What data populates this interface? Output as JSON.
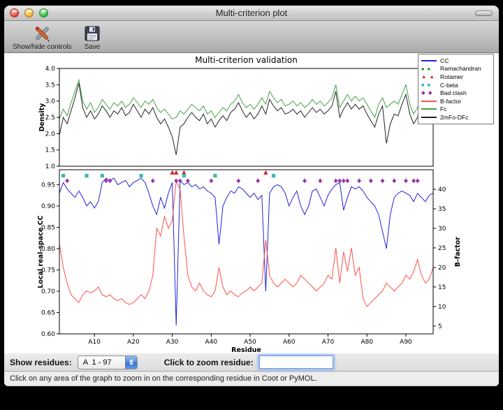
{
  "window": {
    "title": "Multi-criterion plot"
  },
  "toolbar": {
    "items": [
      {
        "label": "Show/hide controls",
        "icon": "tools-icon"
      },
      {
        "label": "Save",
        "icon": "save-icon"
      }
    ]
  },
  "controls": {
    "show_residues_label": "Show residues:",
    "chain_select_value": "A  1 - 97",
    "zoom_label": "Click to zoom residue:",
    "zoom_input_value": ""
  },
  "status_bar": {
    "text": "Click on any area of the graph to zoom in on the corresponding residue in Coot or PyMOL."
  },
  "chart_data": {
    "type": "line",
    "title": "Multi-criterion validation",
    "xlabel": "Residue",
    "x_range": [
      1,
      97
    ],
    "x_tick_positions": [
      10,
      20,
      30,
      40,
      50,
      60,
      70,
      80,
      90
    ],
    "x_ticks": [
      "A10",
      "A20",
      "A30",
      "A40",
      "A50",
      "A60",
      "A70",
      "A80",
      "A90"
    ],
    "legend": {
      "position": "upper right",
      "items": [
        {
          "label": "CC",
          "glyph": "line",
          "color": "#2222dd"
        },
        {
          "label": "Ramachandran",
          "glyph": "circle",
          "color": "#008000"
        },
        {
          "label": "Rotamer",
          "glyph": "triangle",
          "color": "#d42222"
        },
        {
          "label": "C-beta",
          "glyph": "square",
          "color": "#3cb8b2"
        },
        {
          "label": "Bad clash",
          "glyph": "diamond",
          "color": "#9933aa"
        },
        {
          "label": "B-factor",
          "glyph": "line",
          "color": "#ff5048"
        },
        {
          "label": "Fc",
          "glyph": "line",
          "color": "#44a044"
        },
        {
          "label": "2mFo-DFc",
          "glyph": "line",
          "color": "#222222"
        }
      ]
    },
    "panels": [
      {
        "ylabel": "Density",
        "ylim": [
          1.0,
          4.0
        ],
        "yticks": [
          1.0,
          1.5,
          2.0,
          2.5,
          3.0,
          3.5,
          4.0
        ],
        "ytick_labels": [
          "1.0",
          "1.5",
          "2.0",
          "2.5",
          "3.0",
          "3.5",
          "4.0"
        ],
        "series": [
          {
            "name": "Fc",
            "color": "#44a044",
            "values": [
              2.45,
              2.75,
              2.55,
              2.95,
              3.3,
              3.65,
              3.0,
              2.75,
              2.95,
              2.65,
              2.8,
              3.05,
              2.9,
              2.75,
              2.95,
              2.85,
              3.0,
              2.8,
              2.9,
              3.1,
              2.95,
              2.8,
              3.0,
              2.9,
              3.05,
              2.8,
              2.65,
              2.75,
              2.6,
              2.45,
              2.5,
              2.7,
              2.6,
              2.75,
              2.9,
              2.8,
              2.7,
              2.85,
              2.6,
              2.7,
              2.5,
              2.65,
              2.8,
              2.7,
              2.9,
              3.0,
              3.2,
              2.95,
              2.8,
              2.9,
              2.75,
              2.9,
              3.1,
              2.9,
              3.3,
              3.1,
              2.95,
              3.05,
              2.85,
              2.9,
              3.0,
              2.85,
              2.95,
              2.8,
              2.9,
              3.05,
              2.9,
              3.0,
              2.85,
              2.95,
              3.1,
              3.5,
              2.8,
              3.0,
              3.2,
              3.0,
              3.15,
              3.0,
              3.1,
              2.9,
              2.7,
              2.5,
              2.9,
              3.1,
              2.8,
              2.9,
              3.0,
              2.9,
              3.2,
              3.5,
              2.9,
              2.6,
              2.8,
              3.4,
              3.3,
              2.7,
              2.9
            ]
          },
          {
            "name": "2mFo-DFc",
            "color": "#222222",
            "values": [
              1.95,
              2.5,
              2.3,
              2.7,
              3.1,
              3.55,
              2.8,
              2.5,
              2.7,
              2.45,
              2.6,
              2.85,
              2.7,
              2.5,
              2.7,
              2.6,
              2.8,
              2.55,
              2.65,
              2.9,
              2.7,
              2.5,
              2.75,
              2.6,
              2.8,
              2.5,
              2.3,
              2.45,
              2.2,
              1.9,
              1.35,
              2.2,
              2.3,
              2.5,
              2.65,
              2.5,
              2.4,
              2.6,
              2.3,
              2.45,
              2.2,
              2.4,
              2.55,
              2.4,
              2.65,
              2.75,
              2.95,
              2.7,
              2.5,
              2.65,
              2.45,
              2.6,
              2.85,
              2.6,
              3.05,
              2.85,
              2.7,
              2.8,
              2.6,
              2.65,
              2.75,
              2.6,
              2.7,
              2.5,
              2.65,
              2.8,
              2.65,
              2.75,
              2.6,
              2.7,
              2.85,
              3.3,
              2.5,
              2.75,
              2.95,
              2.75,
              2.9,
              2.75,
              2.85,
              2.6,
              2.4,
              2.2,
              2.6,
              2.85,
              1.7,
              2.3,
              2.6,
              2.55,
              2.9,
              3.2,
              2.6,
              2.3,
              2.5,
              3.1,
              3.0,
              2.4,
              2.6
            ]
          }
        ]
      },
      {
        "ylabel": "Local real-space CC",
        "ylim": [
          0.6,
          0.985
        ],
        "yticks": [
          0.6,
          0.65,
          0.7,
          0.75,
          0.8,
          0.85,
          0.9,
          0.95
        ],
        "ytick_labels": [
          "0.60",
          "0.65",
          "0.70",
          "0.75",
          "0.80",
          "0.85",
          "0.90",
          "0.95"
        ],
        "y2label": "B-factor",
        "y2lim": [
          3,
          45
        ],
        "y2ticks": [
          5,
          10,
          15,
          20,
          25,
          30,
          35,
          40
        ],
        "y2tick_labels": [
          "5",
          "10",
          "15",
          "20",
          "25",
          "30",
          "35",
          "40"
        ],
        "series": [
          {
            "name": "CC",
            "color": "#2222dd",
            "axis": "left",
            "values": [
              0.93,
              0.955,
              0.94,
              0.93,
              0.92,
              0.935,
              0.92,
              0.9,
              0.91,
              0.895,
              0.91,
              0.955,
              0.965,
              0.96,
              0.965,
              0.95,
              0.955,
              0.96,
              0.945,
              0.955,
              0.96,
              0.965,
              0.955,
              0.93,
              0.9,
              0.88,
              0.92,
              0.895,
              0.93,
              0.955,
              0.62,
              0.96,
              0.95,
              0.955,
              0.945,
              0.95,
              0.94,
              0.945,
              0.935,
              0.93,
              0.92,
              0.81,
              0.9,
              0.92,
              0.935,
              0.93,
              0.945,
              0.94,
              0.93,
              0.92,
              0.93,
              0.915,
              0.925,
              0.7,
              0.93,
              0.945,
              0.95,
              0.945,
              0.93,
              0.9,
              0.92,
              0.935,
              0.9,
              0.88,
              0.9,
              0.935,
              0.94,
              0.92,
              0.9,
              0.925,
              0.94,
              0.95,
              0.955,
              0.89,
              0.92,
              0.945,
              0.94,
              0.945,
              0.935,
              0.92,
              0.91,
              0.9,
              0.88,
              0.84,
              0.8,
              0.88,
              0.92,
              0.93,
              0.935,
              0.93,
              0.925,
              0.91,
              0.93,
              0.92,
              0.91,
              0.925,
              0.93
            ]
          },
          {
            "name": "B-factor",
            "color": "#ff5048",
            "axis": "right",
            "values": [
              26,
              20,
              16,
              13,
              12,
              11,
              13,
              14,
              13.5,
              14,
              15,
              13,
              12.5,
              13,
              12,
              11.5,
              12,
              11,
              10.5,
              11,
              12,
              13,
              12,
              14,
              18,
              30,
              28,
              33,
              30,
              32,
              42,
              40,
              28,
              18,
              15,
              14,
              16,
              14,
              13,
              12.5,
              14,
              20,
              15,
              13,
              14,
              13,
              12.5,
              13.5,
              14,
              15,
              14,
              15,
              16,
              27,
              18,
              16,
              15,
              16,
              17,
              16,
              15,
              16,
              18,
              17,
              16,
              15,
              14,
              15,
              16,
              18,
              17,
              25,
              16,
              24,
              19,
              25,
              18,
              20,
              12,
              10,
              11,
              12,
              13,
              14,
              16,
              15,
              14,
              15,
              16,
              18,
              17,
              19,
              22,
              18,
              16,
              17,
              20
            ]
          }
        ],
        "markers": [
          {
            "name": "Ramachandran",
            "shape": "circle",
            "color": "#008000",
            "y": 0.978,
            "residues": []
          },
          {
            "name": "Rotamer",
            "shape": "triangle",
            "color": "#d42222",
            "y": 0.978,
            "residues": [
              30,
              31,
              33,
              54
            ]
          },
          {
            "name": "C-beta",
            "shape": "square",
            "color": "#3cb8b2",
            "y": 0.971,
            "residues": [
              2,
              8,
              12,
              22,
              33,
              41,
              56
            ]
          },
          {
            "name": "Bad clash",
            "shape": "diamond",
            "color": "#9933aa",
            "y": 0.959,
            "residues": [
              3,
              13,
              14,
              25,
              31,
              32,
              34,
              40,
              47,
              52,
              64,
              68,
              72,
              73,
              74,
              75,
              78,
              81,
              84,
              87,
              90,
              92,
              93
            ]
          }
        ]
      }
    ]
  }
}
